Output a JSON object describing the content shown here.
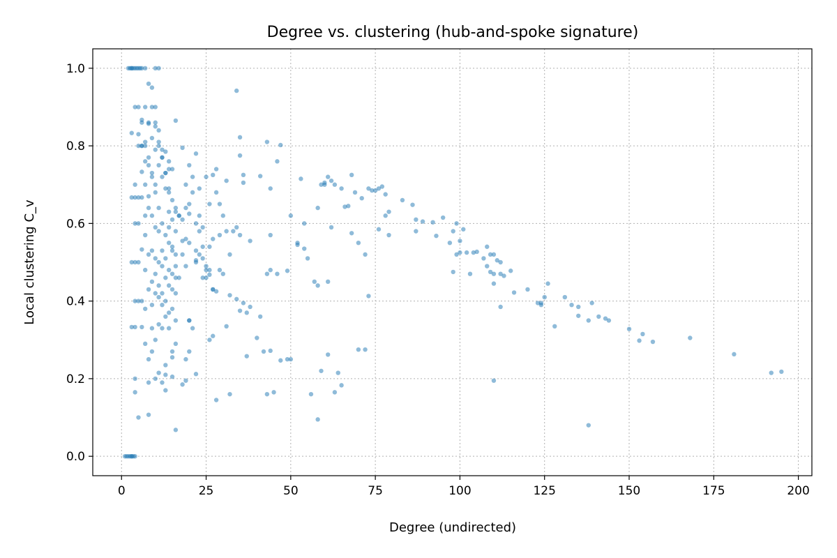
{
  "chart_data": {
    "type": "scatter",
    "title": "Degree vs. clustering (hub-and-spoke signature)",
    "xlabel": "Degree (undirected)",
    "ylabel": "Local clustering C_v",
    "xlim": [
      -8.5,
      204
    ],
    "ylim": [
      -0.05,
      1.05
    ],
    "xticks": [
      0,
      25,
      50,
      75,
      100,
      125,
      150,
      175,
      200
    ],
    "yticks": [
      0.0,
      0.2,
      0.4,
      0.6,
      0.8,
      1.0
    ],
    "xtick_labels": [
      "0",
      "25",
      "50",
      "75",
      "100",
      "125",
      "150",
      "175",
      "200"
    ],
    "ytick_labels": [
      "0.0",
      "0.2",
      "0.4",
      "0.6",
      "0.8",
      "1.0"
    ],
    "grid": true,
    "color": "#1f77b4",
    "series": [
      {
        "x": [
          2,
          2.5,
          3,
          3.5,
          4,
          4.5,
          5,
          5.5,
          6,
          7,
          10,
          11,
          1,
          1.5,
          2,
          2.5,
          3,
          3.5,
          4,
          35,
          54,
          43,
          36,
          46,
          47,
          50,
          27,
          36,
          14,
          16,
          60,
          41,
          52,
          53,
          44,
          35,
          65,
          61,
          62,
          63,
          66,
          67,
          68,
          58,
          60,
          59,
          69,
          71,
          73,
          74,
          75,
          76,
          77,
          78,
          79,
          83,
          86,
          87,
          89,
          92,
          95,
          97,
          98,
          99,
          100,
          102,
          104,
          105,
          107,
          108,
          109,
          110,
          111,
          62,
          68,
          70,
          72,
          76,
          78,
          79,
          87,
          93,
          98,
          100,
          103,
          108,
          110,
          112,
          115,
          28,
          32,
          34,
          36,
          38,
          41,
          43,
          44,
          49,
          52,
          55,
          57,
          58,
          99,
          101,
          109,
          110,
          112,
          116,
          112,
          113,
          124,
          125,
          126,
          123,
          124,
          131,
          133,
          135,
          138,
          141,
          144,
          128,
          135,
          139,
          143,
          150,
          153,
          154,
          157,
          168,
          181,
          192,
          195,
          120,
          138,
          110,
          31,
          35,
          37,
          40,
          44,
          47,
          50,
          54,
          59,
          61,
          70,
          72,
          73,
          28,
          32,
          37,
          45,
          46,
          49,
          56,
          58,
          61,
          63,
          64,
          65,
          38,
          42,
          43,
          44,
          18,
          20,
          22,
          24,
          26,
          27,
          29,
          30,
          21,
          22,
          23,
          25,
          26,
          28,
          30,
          31,
          33,
          34,
          35,
          19,
          20,
          22,
          23,
          24,
          25,
          27,
          28,
          29,
          31,
          32,
          18,
          19,
          20,
          21,
          22,
          23,
          24,
          26,
          27,
          29,
          17,
          18,
          19,
          20,
          22,
          23,
          24,
          25,
          26,
          14,
          15,
          16,
          17,
          18,
          19,
          20,
          13,
          14,
          15,
          16,
          17,
          12,
          13,
          14,
          15,
          16,
          10,
          11,
          12,
          13,
          14,
          15,
          9,
          10,
          11,
          12,
          13,
          14,
          8,
          9,
          10,
          11,
          12,
          7,
          8,
          9,
          10,
          11,
          6,
          7,
          8,
          9,
          10,
          5,
          6,
          7,
          8,
          4,
          4,
          4,
          4,
          4,
          4,
          4,
          4,
          3,
          3,
          3,
          3,
          3,
          3,
          5,
          5,
          5,
          5,
          5,
          5,
          6,
          6,
          6,
          6,
          6,
          6,
          6,
          7,
          7,
          7,
          7,
          7,
          7,
          7,
          8,
          8,
          8,
          8,
          8,
          8,
          8,
          9,
          9,
          9,
          9,
          9,
          9,
          10,
          10,
          10,
          10,
          10,
          10,
          11,
          11,
          11,
          11,
          11,
          11,
          12,
          12,
          12,
          12,
          12,
          12,
          13,
          13,
          13,
          13,
          13,
          14,
          14,
          14,
          14,
          15,
          15,
          15,
          15,
          16,
          16,
          16,
          16,
          16,
          19,
          22,
          26,
          27,
          15,
          18,
          25,
          20,
          13,
          10,
          8,
          5,
          4,
          9,
          11,
          13,
          15,
          16,
          16,
          12,
          13,
          14,
          15,
          19,
          20,
          21,
          34
        ],
        "y": [
          1,
          1,
          1,
          1,
          1,
          1,
          1,
          1,
          1,
          1,
          1,
          1,
          0,
          0,
          0,
          0,
          0,
          0,
          0,
          0.822,
          0.535,
          0.81,
          0.705,
          0.76,
          0.802,
          0.62,
          0.725,
          0.725,
          0.74,
          0.865,
          0.705,
          0.722,
          0.55,
          0.715,
          0.69,
          0.775,
          0.69,
          0.72,
          0.71,
          0.7,
          0.643,
          0.645,
          0.725,
          0.64,
          0.7,
          0.7,
          0.68,
          0.665,
          0.69,
          0.685,
          0.685,
          0.69,
          0.695,
          0.675,
          0.63,
          0.66,
          0.648,
          0.61,
          0.605,
          0.603,
          0.615,
          0.55,
          0.58,
          0.52,
          0.555,
          0.525,
          0.525,
          0.527,
          0.51,
          0.54,
          0.52,
          0.52,
          0.505,
          0.59,
          0.575,
          0.55,
          0.52,
          0.585,
          0.62,
          0.57,
          0.58,
          0.568,
          0.475,
          0.525,
          0.47,
          0.49,
          0.47,
          0.385,
          0.478,
          0.425,
          0.415,
          0.405,
          0.395,
          0.385,
          0.36,
          0.47,
          0.48,
          0.478,
          0.545,
          0.51,
          0.45,
          0.44,
          0.6,
          0.585,
          0.475,
          0.445,
          0.5,
          0.422,
          0.47,
          0.465,
          0.395,
          0.41,
          0.445,
          0.395,
          0.39,
          0.41,
          0.39,
          0.385,
          0.35,
          0.36,
          0.35,
          0.335,
          0.362,
          0.395,
          0.355,
          0.328,
          0.298,
          0.315,
          0.295,
          0.305,
          0.263,
          0.215,
          0.218,
          0.43,
          0.08,
          0.195,
          0.335,
          0.375,
          0.258,
          0.305,
          0.272,
          0.247,
          0.25,
          0.6,
          0.22,
          0.262,
          0.275,
          0.275,
          0.413,
          0.145,
          0.16,
          0.37,
          0.165,
          0.47,
          0.25,
          0.16,
          0.095,
          0.45,
          0.165,
          0.215,
          0.183,
          0.555,
          0.27,
          0.16,
          0.57,
          0.555,
          0.625,
          0.505,
          0.46,
          0.468,
          0.43,
          0.48,
          0.47,
          0.72,
          0.78,
          0.62,
          0.72,
          0.65,
          0.74,
          0.62,
          0.71,
          0.58,
          0.59,
          0.57,
          0.64,
          0.75,
          0.5,
          0.58,
          0.54,
          0.46,
          0.43,
          0.68,
          0.57,
          0.58,
          0.52,
          0.795,
          0.7,
          0.65,
          0.68,
          0.6,
          0.69,
          0.59,
          0.54,
          0.56,
          0.65,
          0.62,
          0.61,
          0.56,
          0.55,
          0.53,
          0.52,
          0.51,
          0.49,
          0.48,
          0.59,
          0.54,
          0.49,
          0.46,
          0.52,
          0.49,
          0.35,
          0.785,
          0.76,
          0.74,
          0.64,
          0.62,
          0.72,
          0.69,
          0.63,
          0.61,
          0.58,
          0.85,
          0.8,
          0.77,
          0.73,
          0.69,
          0.66,
          0.95,
          0.9,
          0.84,
          0.79,
          0.73,
          0.68,
          0.96,
          0.9,
          0.86,
          0.81,
          0.77,
          0.9,
          0.86,
          0.82,
          0.79,
          0.75,
          0.86,
          0.8,
          0.77,
          0.73,
          0.7,
          0.83,
          0.8,
          0.7,
          0.67,
          0.9,
          0.7,
          0.667,
          0.6,
          0.5,
          0.4,
          0.333,
          0.2,
          0.833,
          0.667,
          0.5,
          0.333,
          1,
          0,
          0.9,
          0.8,
          0.667,
          0.6,
          0.5,
          0.4,
          0.867,
          0.8,
          0.733,
          0.667,
          0.533,
          0.4,
          0.333,
          0.81,
          0.76,
          0.62,
          0.57,
          0.48,
          0.38,
          0.29,
          0.857,
          0.75,
          0.64,
          0.52,
          0.43,
          0.25,
          0.19,
          0.72,
          0.62,
          0.53,
          0.45,
          0.39,
          0.33,
          0.68,
          0.59,
          0.51,
          0.47,
          0.42,
          0.3,
          0.64,
          0.58,
          0.5,
          0.44,
          0.41,
          0.34,
          0.6,
          0.53,
          0.49,
          0.42,
          0.39,
          0.33,
          0.57,
          0.51,
          0.46,
          0.4,
          0.36,
          0.55,
          0.48,
          0.44,
          0.37,
          0.53,
          0.47,
          0.43,
          0.38,
          0.52,
          0.46,
          0.42,
          0.35,
          0.068,
          0.195,
          0.212,
          0.3,
          0.31,
          0.205,
          0.185,
          0.48,
          0.27,
          0.235,
          0.2,
          0.107,
          0.1,
          0.165,
          0.27,
          0.215,
          0.21,
          0.255,
          0.29,
          0.63,
          0.19,
          0.17,
          0.33,
          0.27,
          0.25,
          0.35,
          0.33,
          0.942
        ]
      }
    ]
  }
}
